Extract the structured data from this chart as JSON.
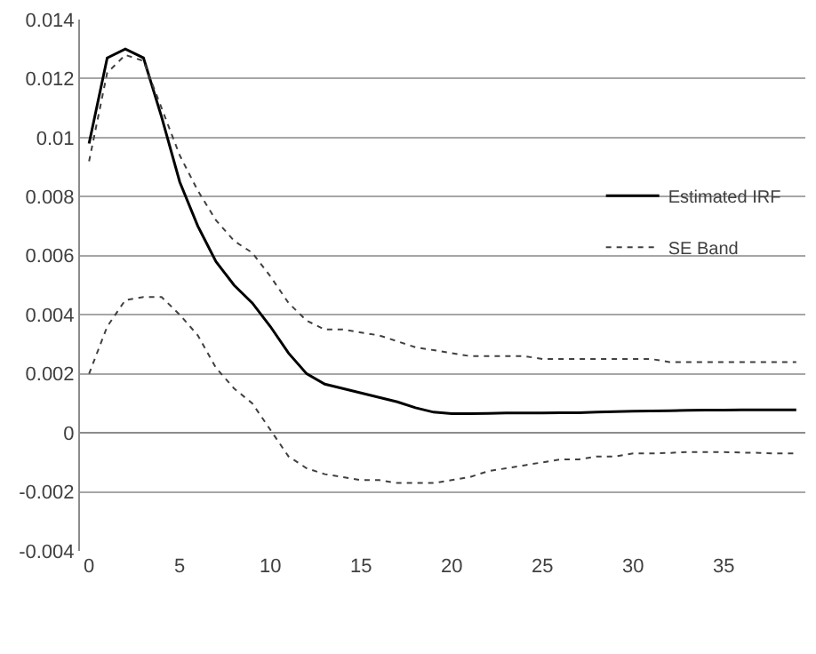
{
  "chart_data": {
    "type": "line",
    "x": [
      0,
      1,
      2,
      3,
      4,
      5,
      6,
      7,
      8,
      9,
      10,
      11,
      12,
      13,
      14,
      15,
      16,
      17,
      18,
      19,
      20,
      21,
      22,
      23,
      24,
      25,
      26,
      27,
      28,
      29,
      30,
      31,
      32,
      33,
      34,
      35,
      36,
      37,
      38,
      39
    ],
    "series": [
      {
        "name": "Estimated IRF",
        "color": "#000000",
        "line_style": "solid",
        "values": [
          0.0098,
          0.0127,
          0.013,
          0.0127,
          0.0107,
          0.0085,
          0.007,
          0.0058,
          0.005,
          0.0044,
          0.0036,
          0.0027,
          0.002,
          0.00165,
          0.0015,
          0.00135,
          0.0012,
          0.00105,
          0.00085,
          0.0007,
          0.00065,
          0.00065,
          0.00066,
          0.00067,
          0.00067,
          0.00067,
          0.00068,
          0.00068,
          0.0007,
          0.00072,
          0.00073,
          0.00074,
          0.00075,
          0.00076,
          0.00077,
          0.00077,
          0.00078,
          0.00078,
          0.00078,
          0.00078
        ]
      },
      {
        "name": "SE Band",
        "color": "#404040",
        "line_style": "dotted",
        "values": [
          0.0092,
          0.0122,
          0.0128,
          0.0126,
          0.011,
          0.0094,
          0.0082,
          0.0072,
          0.0065,
          0.0061,
          0.0053,
          0.0044,
          0.0038,
          0.0035,
          0.0035,
          0.0034,
          0.0033,
          0.0031,
          0.0029,
          0.0028,
          0.0027,
          0.0026,
          0.0026,
          0.0026,
          0.0026,
          0.0025,
          0.0025,
          0.0025,
          0.0025,
          0.0025,
          0.0025,
          0.0025,
          0.0024,
          0.0024,
          0.0024,
          0.0024,
          0.0024,
          0.0024,
          0.0024,
          0.0024
        ]
      },
      {
        "color": "#404040",
        "line_style": "dotted",
        "values": [
          0.002,
          0.0036,
          0.0045,
          0.0046,
          0.0046,
          0.004,
          0.0033,
          0.0022,
          0.0015,
          0.001,
          0.0001,
          -0.0008,
          -0.0012,
          -0.0014,
          -0.0015,
          -0.0016,
          -0.0016,
          -0.0017,
          -0.0017,
          -0.0017,
          -0.0016,
          -0.0015,
          -0.0013,
          -0.0012,
          -0.0011,
          -0.001,
          -0.0009,
          -0.0009,
          -0.0008,
          -0.0008,
          -0.0007,
          -0.0007,
          -0.00068,
          -0.00065,
          -0.00065,
          -0.00065,
          -0.00067,
          -0.00068,
          -0.0007,
          -0.0007
        ]
      }
    ],
    "xlim": [
      -0.5,
      39.5
    ],
    "xticks": [
      0,
      5,
      10,
      15,
      20,
      25,
      30,
      35
    ],
    "ylim": [
      -0.004,
      0.014
    ],
    "yticks": [
      -0.004,
      -0.002,
      0,
      0.002,
      0.004,
      0.006,
      0.008,
      0.01,
      0.012,
      0.014
    ],
    "grid": "y",
    "legend": "right",
    "marker": "none"
  }
}
